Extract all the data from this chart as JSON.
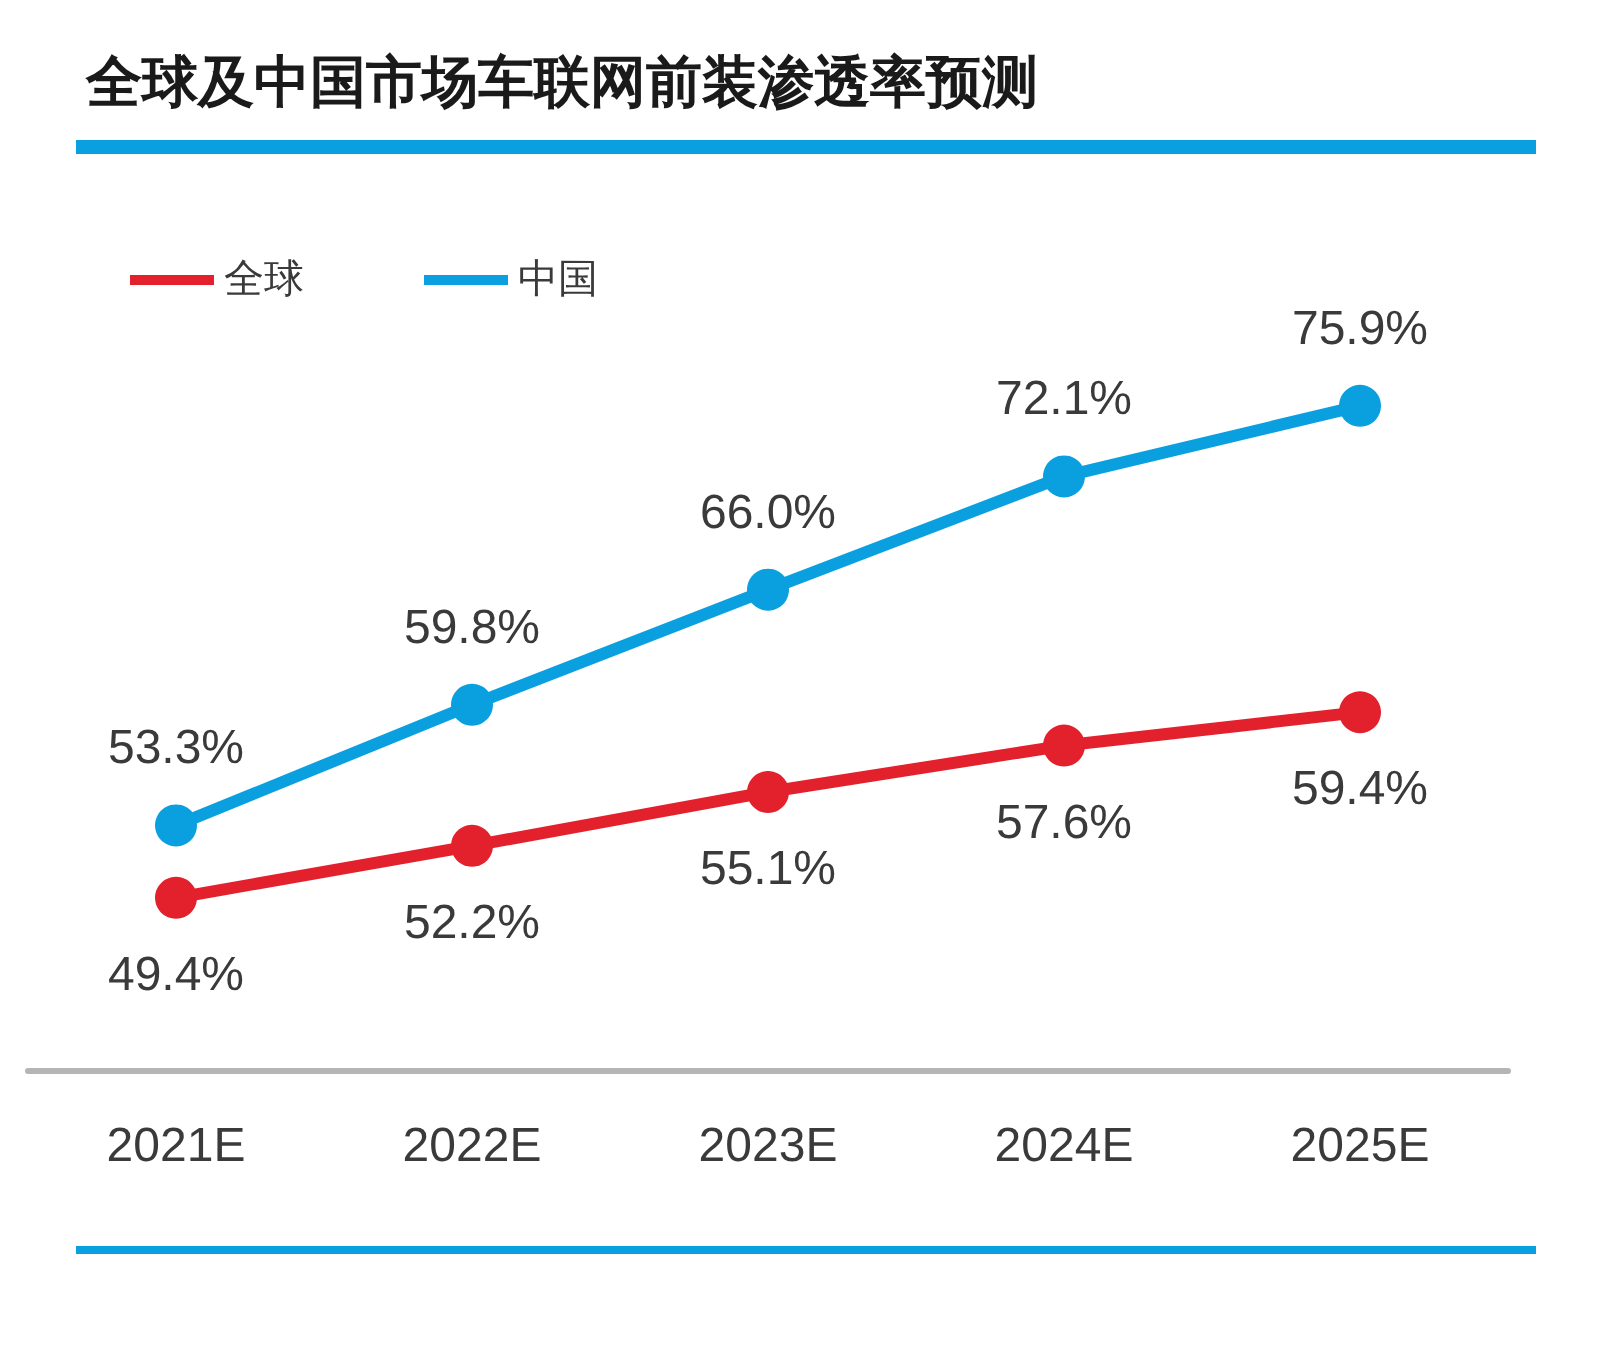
{
  "chart_data": {
    "type": "line",
    "title": "全球及中国市场车联网前装渗透率预测",
    "categories": [
      "2021E",
      "2022E",
      "2023E",
      "2024E",
      "2025E"
    ],
    "series": [
      {
        "name": "全球",
        "color": "#e3212d",
        "values": [
          49.4,
          52.2,
          55.1,
          57.6,
          59.4
        ],
        "value_labels": [
          "49.4%",
          "52.2%",
          "55.1%",
          "57.6%",
          "59.4%"
        ]
      },
      {
        "name": "中国",
        "color": "#0aa0e0",
        "values": [
          53.3,
          59.8,
          66.0,
          72.1,
          75.9
        ],
        "value_labels": [
          "53.3%",
          "59.8%",
          "66.0%",
          "72.1%",
          "75.9%"
        ]
      }
    ],
    "legend": "top left",
    "marker": "circle",
    "line_style": "solid",
    "grid": false
  }
}
